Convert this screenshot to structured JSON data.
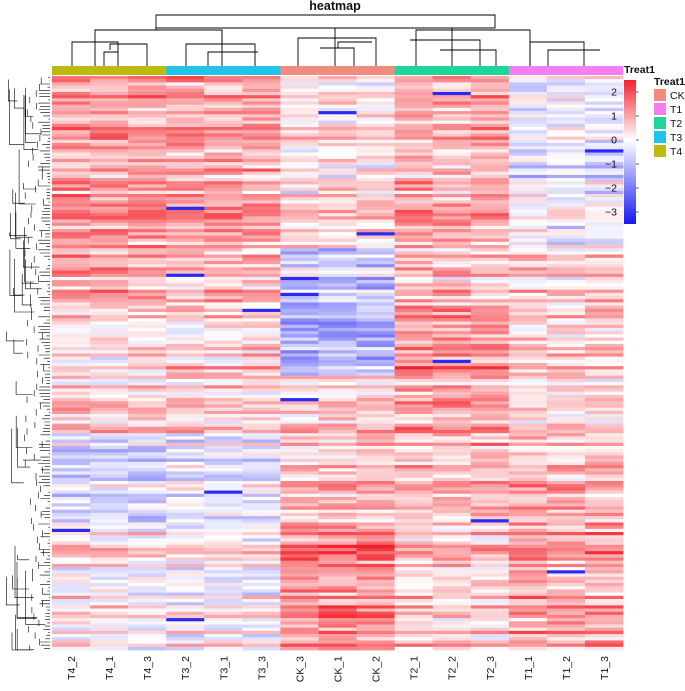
{
  "chart_data": {
    "type": "heatmap",
    "title": "heatmap",
    "columns": [
      "T4_2",
      "T4_1",
      "T4_3",
      "T3_2",
      "T3_1",
      "T3_3",
      "CK_3",
      "CK_1",
      "CK_2",
      "T2_1",
      "T2_2",
      "T2_3",
      "T1_1",
      "T1_2",
      "T1_3"
    ],
    "column_groups": [
      "T4",
      "T4",
      "T4",
      "T3",
      "T3",
      "T3",
      "CK",
      "CK",
      "CK",
      "T2",
      "T2",
      "T2",
      "T1",
      "T1",
      "T1"
    ],
    "group_order": [
      "T4",
      "T3",
      "CK",
      "T2",
      "T1"
    ],
    "annotation": {
      "title": "Treat1",
      "legend": [
        {
          "label": "CK",
          "color": "#F08C7E"
        },
        {
          "label": "T1",
          "color": "#F47EF0"
        },
        {
          "label": "T2",
          "color": "#1FD69A"
        },
        {
          "label": "T3",
          "color": "#22C3E8"
        },
        {
          "label": "T4",
          "color": "#BDB90F"
        }
      ]
    },
    "color_scale": {
      "min": -3.5,
      "max": 2.5,
      "low": "#1616F2",
      "mid": "#FFFFFF",
      "high": "#F2222A",
      "ticks": [
        "2",
        "1",
        "0",
        "−1",
        "−2",
        "−3"
      ],
      "tick_values": [
        2,
        1,
        0,
        -1,
        -2,
        -3
      ]
    },
    "row_count": 180,
    "colors": {
      "axis": "#000000",
      "dendrogram": "#000000"
    }
  }
}
